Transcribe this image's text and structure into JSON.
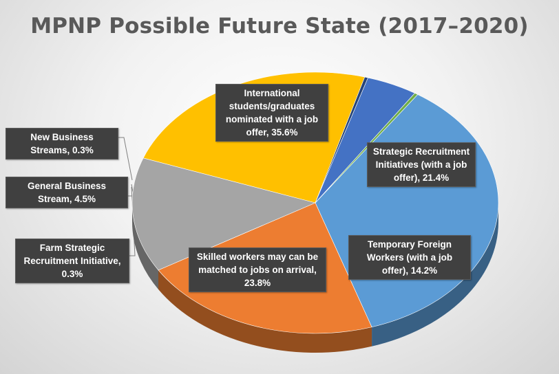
{
  "chart_data": {
    "type": "pie",
    "title": "MPNP Possible Future State (2017–2020)",
    "slices": [
      {
        "label": "International students/graduates nominated with a job offer",
        "value": 35.6,
        "display": "35.6%",
        "color": "#5b9bd5"
      },
      {
        "label": "Strategic Recruitment Initiatives (with a job offer)",
        "value": 21.4,
        "display": "21.4%",
        "color": "#ed7d31"
      },
      {
        "label": "Temporary Foreign Workers (with a job offer)",
        "value": 14.2,
        "display": "14.2%",
        "color": "#a5a5a5"
      },
      {
        "label": "Skilled workers may can be matched to jobs on arrival",
        "value": 23.8,
        "display": "23.8%",
        "color": "#ffc000"
      },
      {
        "label": "Farm Strategic Recruitment Initiative",
        "value": 0.3,
        "display": "0.3%",
        "color": "#264478"
      },
      {
        "label": "General Business Stream",
        "value": 4.5,
        "display": "4.5%",
        "color": "#4472c4"
      },
      {
        "label": "New Business Streams",
        "value": 0.3,
        "display": "0.3%",
        "color": "#70ad47"
      }
    ],
    "data_labels": [
      "International students/graduates nominated with a job offer, 35.6%",
      "Strategic Recruitment Initiatives (with a job offer), 21.4%",
      "Temporary Foreign Workers (with a job offer), 14.2%",
      "Skilled workers may can be matched to jobs on arrival, 23.8%",
      "Farm Strategic Recruitment Initiative, 0.3%",
      "General Business Stream, 4.5%",
      "New Business Streams, 0.3%"
    ],
    "legend": "none",
    "style": "3d-pie"
  }
}
